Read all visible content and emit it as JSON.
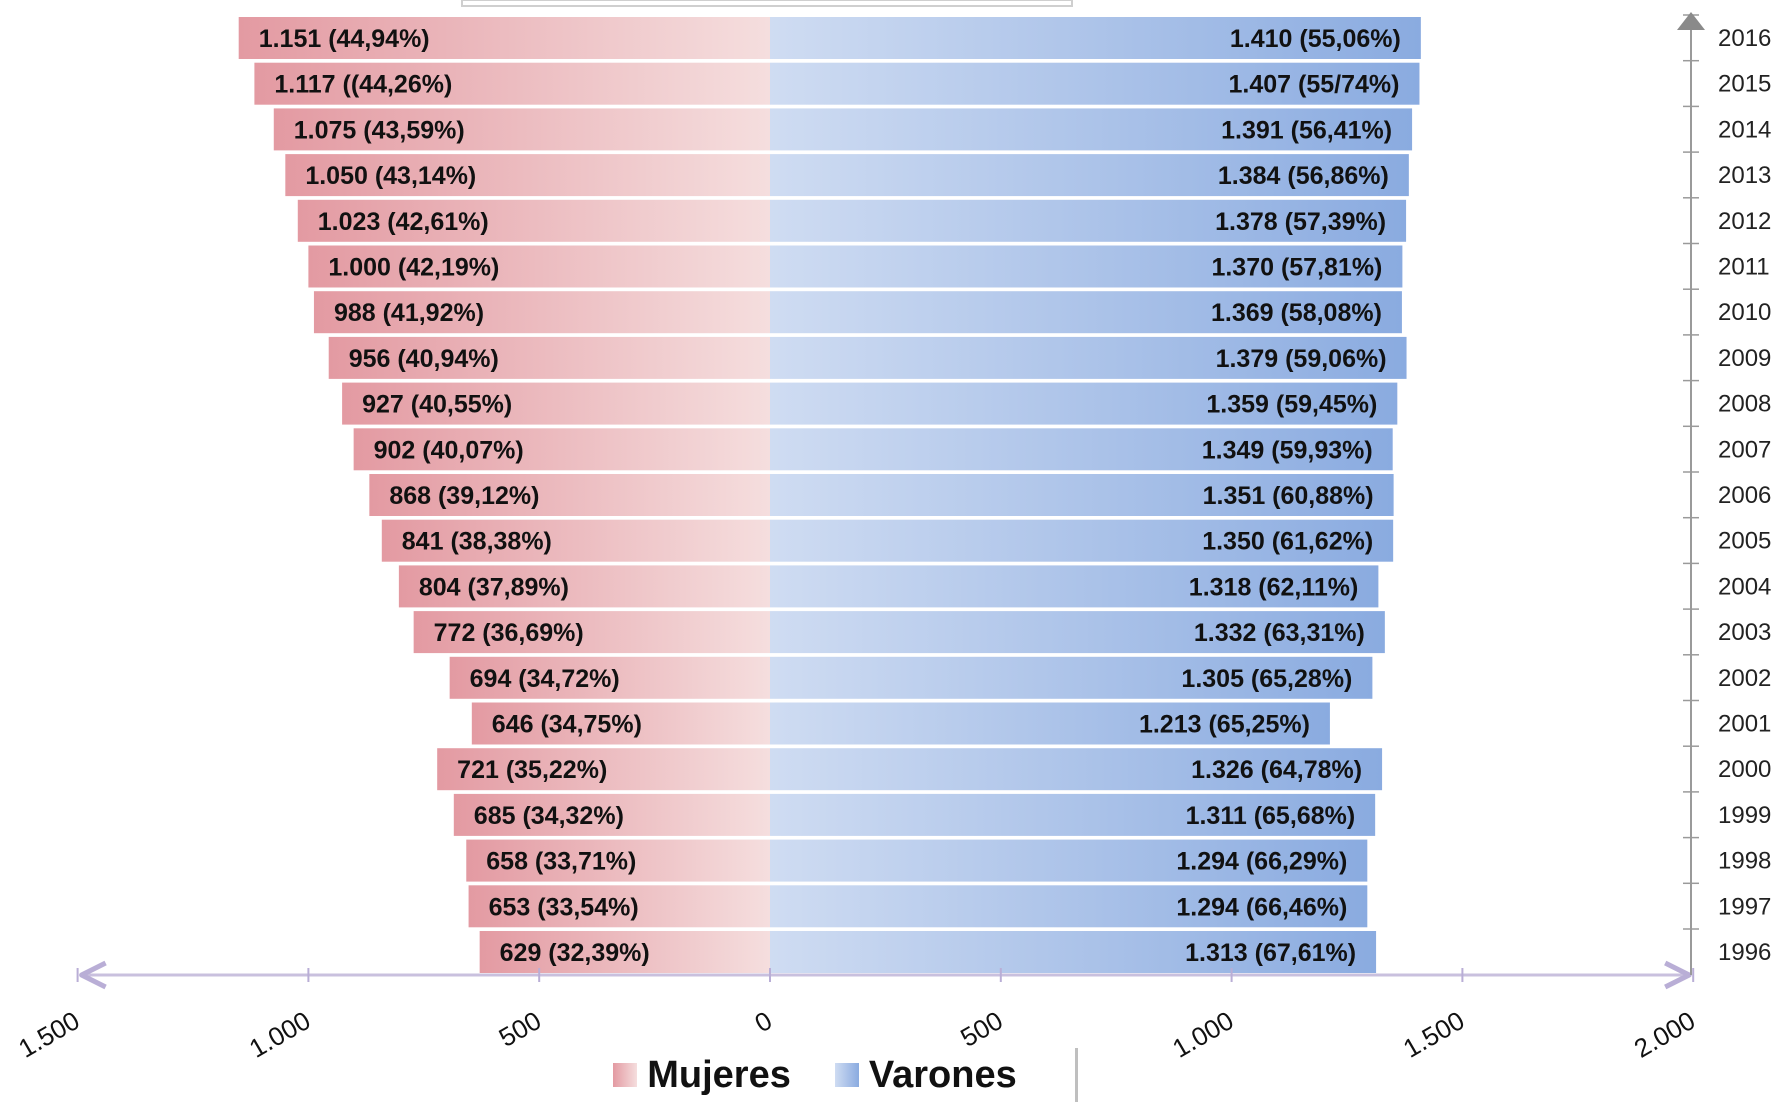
{
  "chart_data": {
    "type": "bar",
    "orientation": "horizontal-diverging",
    "categories": [
      "2016",
      "2015",
      "2014",
      "2013",
      "2012",
      "2011",
      "2010",
      "2009",
      "2008",
      "2007",
      "2006",
      "2005",
      "2004",
      "2003",
      "2002",
      "2001",
      "2000",
      "1999",
      "1998",
      "1997",
      "1996"
    ],
    "series": [
      {
        "name": "Mujeres",
        "side": "left",
        "color": "#e8a2a9",
        "values": [
          1151,
          1117,
          1075,
          1050,
          1023,
          1000,
          988,
          956,
          927,
          902,
          868,
          841,
          804,
          772,
          694,
          646,
          721,
          685,
          658,
          653,
          629
        ],
        "labels": [
          "1.151 (44,94%)",
          "1.117 ((44,26%)",
          "1.075 (43,59%)",
          "1.050 (43,14%)",
          "1.023 (42,61%)",
          "1.000 (42,19%)",
          "988 (41,92%)",
          "956 (40,94%)",
          "927 (40,55%)",
          "902 (40,07%)",
          "868 (39,12%)",
          "841 (38,38%)",
          "804 (37,89%)",
          "772 (36,69%)",
          "694 (34,72%)",
          "646 (34,75%)",
          "721 (35,22%)",
          "685 (34,32%)",
          "658 (33,71%)",
          "653 (33,54%)",
          "629 (32,39%)"
        ]
      },
      {
        "name": "Varones",
        "side": "right",
        "color": "#8fb0e3",
        "values": [
          1410,
          1407,
          1391,
          1384,
          1378,
          1370,
          1369,
          1379,
          1359,
          1349,
          1351,
          1350,
          1318,
          1332,
          1305,
          1213,
          1326,
          1311,
          1294,
          1294,
          1313
        ],
        "labels": [
          "1.410 (55,06%)",
          "1.407 (55/74%)",
          "1.391 (56,41%)",
          "1.384 (56,86%)",
          "1.378 (57,39%)",
          "1.370 (57,81%)",
          "1.369 (58,08%)",
          "1.379 (59,06%)",
          "1.359 (59,45%)",
          "1.349 (59,93%)",
          "1.351 (60,88%)",
          "1.350 (61,62%)",
          "1.318 (62,11%)",
          "1.332 (63,31%)",
          "1.305 (65,28%)",
          "1.213 (65,25%)",
          "1.326 (64,78%)",
          "1.311 (65,68%)",
          "1.294 (66,29%)",
          "1.294 (66,46%)",
          "1.313 (67,61%)"
        ]
      }
    ],
    "x_ticks": [
      {
        "value": -1500,
        "label": "1.500"
      },
      {
        "value": -1000,
        "label": "1.000"
      },
      {
        "value": -500,
        "label": "500"
      },
      {
        "value": 0,
        "label": "0"
      },
      {
        "value": 500,
        "label": "500"
      },
      {
        "value": 1000,
        "label": "1.000"
      },
      {
        "value": 1500,
        "label": "1.500"
      },
      {
        "value": 2000,
        "label": "2.000"
      }
    ],
    "xlim": [
      -1500,
      2000
    ],
    "title": "",
    "xlabel": "",
    "ylabel": "",
    "grid": false,
    "legend": {
      "position": "bottom-center",
      "items": [
        "Mujeres",
        "Varones"
      ]
    }
  }
}
